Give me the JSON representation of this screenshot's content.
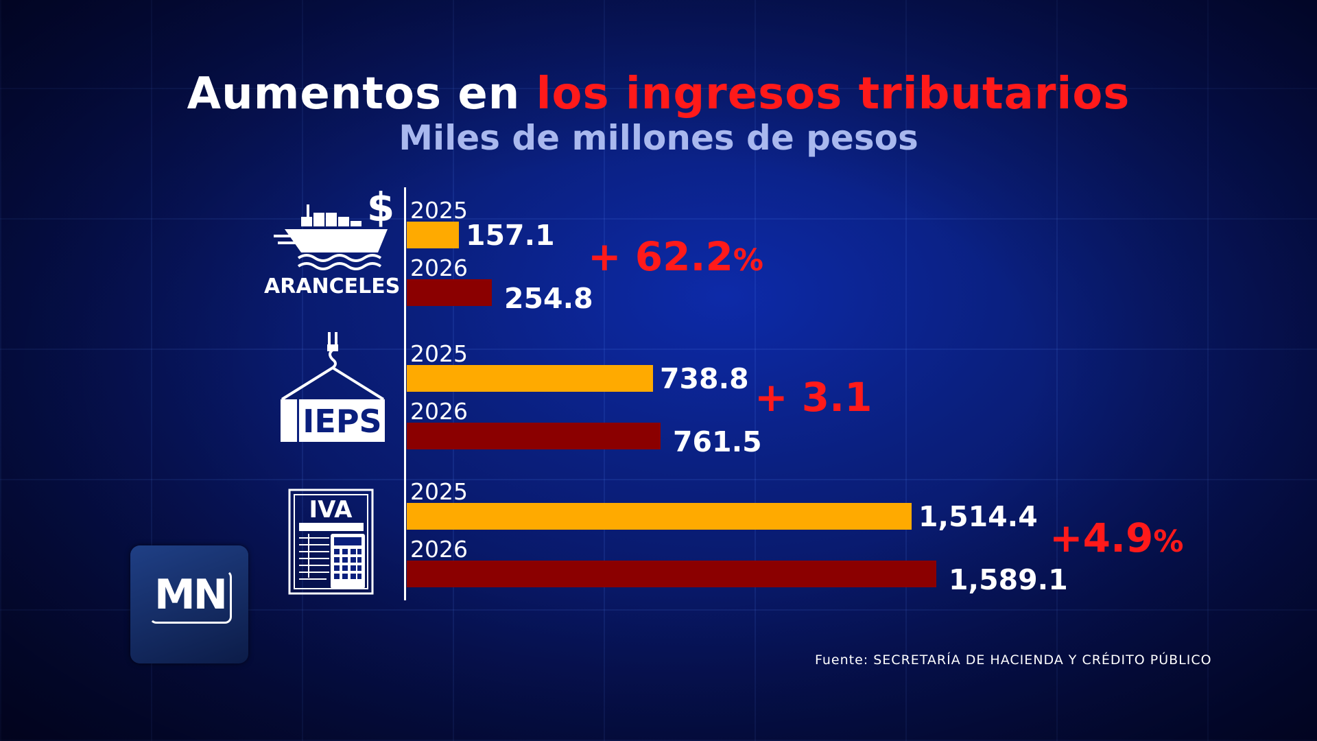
{
  "header": {
    "title_plain": "Aumentos en ",
    "title_highlight": "los ingresos tributarios",
    "subtitle": "Miles de millones de pesos"
  },
  "colors": {
    "title_highlight": "#ff1a1a",
    "subtitle": "#a9b8ee",
    "bar_2025": "#ffaa00",
    "bar_2026": "#8b0000",
    "change": "#ff1a1a"
  },
  "chart_data": {
    "type": "bar",
    "orientation": "horizontal",
    "title": "Aumentos en los ingresos tributarios",
    "subtitle": "Miles de millones de pesos",
    "categories": [
      "ARANCELES",
      "IEPS",
      "IVA"
    ],
    "series": [
      {
        "name": "2025",
        "values": [
          157.1,
          738.8,
          1514.4
        ],
        "labels": [
          "157.1",
          "738.8",
          "1,514.4"
        ]
      },
      {
        "name": "2026",
        "values": [
          254.8,
          761.5,
          1589.1
        ],
        "labels": [
          "254.8",
          "761.5",
          "1,589.1"
        ]
      }
    ],
    "changes": [
      {
        "text": "+ 62.2",
        "unit": "%"
      },
      {
        "text": "+ 3.1",
        "unit": ""
      },
      {
        "text": "+4.9",
        "unit": "%"
      }
    ],
    "category_icons": [
      "cargo-ship-dollar-icon",
      "crane-container-icon",
      "invoice-calculator-icon"
    ],
    "icon_labels": [
      "ARANCELES",
      "IEPS",
      "IVA"
    ],
    "grid": false
  },
  "logo": {
    "text": "MN"
  },
  "source": "Fuente: SECRETARÍA DE HACIENDA Y CRÉDITO PÚBLICO"
}
